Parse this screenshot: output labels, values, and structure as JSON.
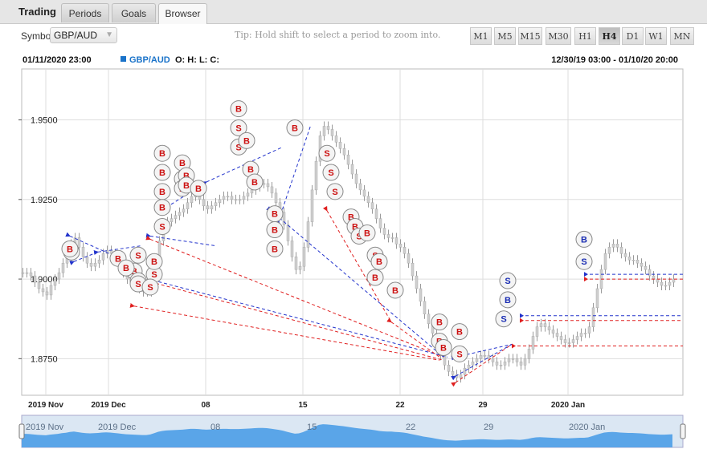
{
  "tabs": {
    "title": "Trading",
    "items": [
      "Periods",
      "Goals",
      "Browser"
    ],
    "active": "Browser"
  },
  "toolbar": {
    "symbol_label": "Symbol",
    "symbol_value": "GBP/AUD",
    "tip": "Tip: Hold shift to select a period to zoom into.",
    "timeframes": [
      "M1",
      "M5",
      "M15",
      "M30",
      "H1",
      "H4",
      "D1",
      "W1",
      "MN"
    ],
    "active_timeframe": "H4"
  },
  "info": {
    "datetime": "01/11/2020 23:00",
    "symbol": "GBP/AUD",
    "ohlc": "O: H: L: C:",
    "range": "12/30/19 03:00 - 01/10/20 20:00"
  },
  "colors": {
    "buy": "#cc1111",
    "sell_blue": "#1a2db3",
    "line_red": "#e02020",
    "line_blue": "#2233cc",
    "navigator": "#5aa5e8"
  },
  "chart_data": {
    "type": "candlestick",
    "y_ticks": [
      "1.9500",
      "1.9250",
      "1.9000",
      "1.8750"
    ],
    "y_tick_values": [
      1.95,
      1.925,
      1.9,
      1.875
    ],
    "ylim": [
      1.8635,
      1.966
    ],
    "x_ticks": [
      "2019 Nov",
      "2019 Dec",
      "08",
      "15",
      "22",
      "29",
      "2020 Jan"
    ],
    "navigator_ticks": [
      "2019 Nov",
      "2019 Dec",
      "08",
      "15",
      "22",
      "29",
      "2020 Jan"
    ],
    "price_series": {
      "t": [
        0,
        5,
        10,
        15,
        20,
        25,
        30,
        35,
        40,
        45,
        50,
        55,
        60,
        65,
        70,
        75,
        80,
        85,
        90,
        95,
        100,
        105,
        110,
        115,
        120,
        125,
        130,
        135,
        140,
        145,
        150,
        155,
        160,
        165,
        170,
        175,
        180,
        185,
        190,
        195,
        200,
        205,
        210,
        215,
        220,
        225,
        230,
        235,
        240,
        245,
        250,
        255,
        260,
        265,
        270,
        275,
        280,
        285,
        290,
        295,
        300,
        305,
        310,
        315,
        320,
        325,
        330,
        335,
        340,
        345,
        350,
        355,
        360,
        365,
        370,
        375,
        380,
        385,
        390,
        395,
        400,
        405,
        410,
        415,
        420,
        425,
        430,
        435,
        440,
        445,
        450,
        455,
        460,
        465,
        470,
        475,
        480,
        485,
        490,
        495,
        500,
        505,
        510,
        515,
        520,
        525,
        530,
        535,
        540,
        545,
        550,
        555,
        560,
        565,
        570,
        575,
        580,
        585,
        590,
        595,
        600,
        605,
        610,
        615,
        620,
        625,
        630,
        635,
        640,
        645,
        650,
        655,
        660,
        665,
        670,
        675,
        680,
        685,
        690,
        695,
        700,
        705,
        710,
        715,
        720,
        725,
        730,
        735,
        740,
        745,
        750,
        755,
        760,
        765,
        770,
        775,
        780,
        785,
        790,
        795,
        800,
        805,
        810
      ],
      "close": [
        1.902,
        1.902,
        1.901,
        1.899,
        1.897,
        1.896,
        1.895,
        1.898,
        1.9,
        1.902,
        1.905,
        1.907,
        1.911,
        1.913,
        1.91,
        1.907,
        1.905,
        1.904,
        1.905,
        1.906,
        1.908,
        1.909,
        1.908,
        1.906,
        1.904,
        1.902,
        1.9,
        1.899,
        1.898,
        1.897,
        1.896,
        1.896,
        1.899,
        1.905,
        1.912,
        1.916,
        1.918,
        1.919,
        1.92,
        1.921,
        1.922,
        1.924,
        1.926,
        1.926,
        1.925,
        1.923,
        1.922,
        1.923,
        1.924,
        1.925,
        1.926,
        1.926,
        1.925,
        1.925,
        1.925,
        1.926,
        1.927,
        1.928,
        1.929,
        1.93,
        1.93,
        1.929,
        1.927,
        1.924,
        1.921,
        1.917,
        1.912,
        1.907,
        1.903,
        1.904,
        1.91,
        1.918,
        1.928,
        1.937,
        1.945,
        1.948,
        1.947,
        1.945,
        1.943,
        1.941,
        1.939,
        1.936,
        1.933,
        1.93,
        1.928,
        1.926,
        1.924,
        1.922,
        1.919,
        1.916,
        1.914,
        1.913,
        1.913,
        1.911,
        1.91,
        1.908,
        1.905,
        1.901,
        1.897,
        1.893,
        1.889,
        1.886,
        1.883,
        1.879,
        1.876,
        1.873,
        1.871,
        1.87,
        1.869,
        1.87,
        1.872,
        1.873,
        1.874,
        1.875,
        1.876,
        1.876,
        1.875,
        1.874,
        1.873,
        1.873,
        1.874,
        1.875,
        1.875,
        1.874,
        1.873,
        1.875,
        1.878,
        1.882,
        1.885,
        1.886,
        1.885,
        1.884,
        1.883,
        1.882,
        1.881,
        1.88,
        1.88,
        1.881,
        1.882,
        1.883,
        1.883,
        1.885,
        1.891,
        1.897,
        1.903,
        1.908,
        1.91,
        1.911,
        1.91,
        1.908,
        1.907,
        1.906,
        1.906,
        1.905,
        1.904,
        1.903,
        1.901,
        1.9,
        1.899,
        1.898,
        1.898,
        1.899,
        1.9
      ]
    },
    "markers": [
      {
        "label": "B",
        "type": "buy",
        "t": 62,
        "y": 1.9085
      },
      {
        "label": "B",
        "type": "buy",
        "t": 60,
        "y": 1.9095
      },
      {
        "label": "B",
        "type": "buy",
        "t": 120,
        "y": 1.9065
      },
      {
        "label": "S",
        "type": "buy",
        "t": 145,
        "y": 1.9075
      },
      {
        "label": "B",
        "type": "buy",
        "t": 140,
        "y": 1.9025
      },
      {
        "label": "B",
        "type": "buy",
        "t": 145,
        "y": 1.8995
      },
      {
        "label": "S",
        "type": "buy",
        "t": 145,
        "y": 1.8985
      },
      {
        "label": "B",
        "type": "buy",
        "t": 130,
        "y": 1.9035
      },
      {
        "label": "S",
        "type": "buy",
        "t": 165,
        "y": 1.9015
      },
      {
        "label": "B",
        "type": "buy",
        "t": 165,
        "y": 1.9055
      },
      {
        "label": "S",
        "type": "buy",
        "t": 160,
        "y": 1.8975
      },
      {
        "label": "B",
        "type": "buy",
        "t": 175,
        "y": 1.9395
      },
      {
        "label": "B",
        "type": "buy",
        "t": 175,
        "y": 1.9335
      },
      {
        "label": "B",
        "type": "buy",
        "t": 175,
        "y": 1.9275
      },
      {
        "label": "S",
        "type": "buy",
        "t": 175,
        "y": 1.9165
      },
      {
        "label": "B",
        "type": "buy",
        "t": 175,
        "y": 1.9225
      },
      {
        "label": "B",
        "type": "buy",
        "t": 200,
        "y": 1.9365
      },
      {
        "label": "B",
        "type": "buy",
        "t": 200,
        "y": 1.9315
      },
      {
        "label": "B",
        "type": "buy",
        "t": 200,
        "y": 1.9285
      },
      {
        "label": "B",
        "type": "buy",
        "t": 205,
        "y": 1.9325
      },
      {
        "label": "B",
        "type": "buy",
        "t": 205,
        "y": 1.9295
      },
      {
        "label": "B",
        "type": "buy",
        "t": 220,
        "y": 1.9285
      },
      {
        "label": "B",
        "type": "buy",
        "t": 270,
        "y": 1.9535
      },
      {
        "label": "S",
        "type": "buy",
        "t": 270,
        "y": 1.9475
      },
      {
        "label": "S",
        "type": "buy",
        "t": 270,
        "y": 1.9415
      },
      {
        "label": "B",
        "type": "buy",
        "t": 280,
        "y": 1.9435
      },
      {
        "label": "B",
        "type": "buy",
        "t": 285,
        "y": 1.9345
      },
      {
        "label": "B",
        "type": "buy",
        "t": 290,
        "y": 1.9305
      },
      {
        "label": "B",
        "type": "buy",
        "t": 315,
        "y": 1.9205
      },
      {
        "label": "B",
        "type": "buy",
        "t": 315,
        "y": 1.9155
      },
      {
        "label": "B",
        "type": "buy",
        "t": 315,
        "y": 1.9095
      },
      {
        "label": "B",
        "type": "buy",
        "t": 340,
        "y": 1.9475
      },
      {
        "label": "S",
        "type": "buy",
        "t": 380,
        "y": 1.9395
      },
      {
        "label": "S",
        "type": "buy",
        "t": 385,
        "y": 1.9335
      },
      {
        "label": "S",
        "type": "buy",
        "t": 390,
        "y": 1.9275
      },
      {
        "label": "B",
        "type": "buy",
        "t": 410,
        "y": 1.9195
      },
      {
        "label": "B",
        "type": "buy",
        "t": 415,
        "y": 1.9165
      },
      {
        "label": "S",
        "type": "buy",
        "t": 420,
        "y": 1.9135
      },
      {
        "label": "B",
        "type": "buy",
        "t": 430,
        "y": 1.9145
      },
      {
        "label": "S",
        "type": "buy",
        "t": 440,
        "y": 1.9075
      },
      {
        "label": "B",
        "type": "buy",
        "t": 445,
        "y": 1.9055
      },
      {
        "label": "B",
        "type": "buy",
        "t": 440,
        "y": 1.9005
      },
      {
        "label": "B",
        "type": "buy",
        "t": 465,
        "y": 1.8965
      },
      {
        "label": "B",
        "type": "buy",
        "t": 520,
        "y": 1.8865
      },
      {
        "label": "B",
        "type": "buy",
        "t": 545,
        "y": 1.8835
      },
      {
        "label": "B",
        "type": "buy",
        "t": 520,
        "y": 1.8805
      },
      {
        "label": "B",
        "type": "buy",
        "t": 525,
        "y": 1.8785
      },
      {
        "label": "S",
        "type": "buy",
        "t": 545,
        "y": 1.8765
      },
      {
        "label": "S",
        "type": "sell",
        "t": 605,
        "y": 1.8995
      },
      {
        "label": "B",
        "type": "sell",
        "t": 605,
        "y": 1.8935
      },
      {
        "label": "S",
        "type": "sell",
        "t": 600,
        "y": 1.8875
      },
      {
        "label": "B",
        "type": "sell",
        "t": 700,
        "y": 1.9125
      },
      {
        "label": "S",
        "type": "sell",
        "t": 700,
        "y": 1.9055
      }
    ],
    "trade_lines": [
      {
        "color": "blue",
        "from": [
          60,
          1.9135
        ],
        "to": [
          140,
          1.9045
        ]
      },
      {
        "color": "blue",
        "from": [
          65,
          1.9055
        ],
        "to": [
          95,
          1.9085
        ]
      },
      {
        "color": "blue",
        "from": [
          95,
          1.9085
        ],
        "to": [
          150,
          1.9105
        ]
      },
      {
        "color": "blue",
        "from": [
          160,
          1.9135
        ],
        "to": [
          240,
          1.9105
        ]
      },
      {
        "color": "red",
        "from": [
          160,
          1.9125
        ],
        "to": [
          525,
          1.8755
        ]
      },
      {
        "color": "blue",
        "from": [
          150,
          1.9005
        ],
        "to": [
          530,
          1.8755
        ]
      },
      {
        "color": "red",
        "from": [
          140,
          1.9005
        ],
        "to": [
          525,
          1.8745
        ]
      },
      {
        "color": "red",
        "from": [
          140,
          1.8915
        ],
        "to": [
          520,
          1.8745
        ]
      },
      {
        "color": "blue",
        "from": [
          180,
          1.9225
        ],
        "to": [
          230,
          1.9305
        ]
      },
      {
        "color": "blue",
        "from": [
          230,
          1.9305
        ],
        "to": [
          325,
          1.9415
        ]
      },
      {
        "color": "blue",
        "from": [
          310,
          1.9215
        ],
        "to": [
          525,
          1.8755
        ]
      },
      {
        "color": "blue",
        "from": [
          320,
          1.9185
        ],
        "to": [
          360,
          1.9485
        ]
      },
      {
        "color": "red",
        "from": [
          380,
          1.9215
        ],
        "to": [
          460,
          1.8865
        ]
      },
      {
        "color": "red",
        "from": [
          460,
          1.8865
        ],
        "to": [
          520,
          1.8755
        ]
      },
      {
        "color": "blue",
        "from": [
          540,
          1.8755
        ],
        "to": [
          610,
          1.8795
        ]
      },
      {
        "color": "red",
        "from": [
          540,
          1.8675
        ],
        "to": [
          610,
          1.8795
        ]
      },
      {
        "color": "blue",
        "from": [
          540,
          1.8695
        ],
        "to": [
          610,
          1.8795
        ]
      }
    ],
    "h_lines": [
      {
        "color": "blue",
        "y": 1.9015,
        "from": 700
      },
      {
        "color": "red",
        "y": 1.9,
        "from": 700
      },
      {
        "color": "blue",
        "y": 1.8885,
        "from": 620
      },
      {
        "color": "red",
        "y": 1.887,
        "from": 620
      },
      {
        "color": "red",
        "y": 1.879,
        "from": 610
      }
    ]
  }
}
